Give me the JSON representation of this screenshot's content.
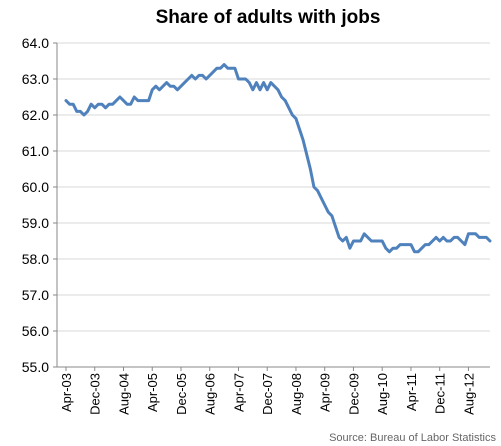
{
  "chart_data": {
    "type": "line",
    "title": "Share of adults with jobs",
    "source": "Source: Bureau of Labor Statistics",
    "ylim": [
      55.0,
      64.0
    ],
    "yticks": [
      "55.0",
      "56.0",
      "57.0",
      "58.0",
      "59.0",
      "60.0",
      "61.0",
      "62.0",
      "63.0",
      "64.0"
    ],
    "xticks": [
      "Apr-03",
      "Dec-03",
      "Aug-04",
      "Apr-05",
      "Dec-05",
      "Aug-06",
      "Apr-07",
      "Dec-07",
      "Aug-08",
      "Apr-09",
      "Dec-09",
      "Aug-10",
      "Apr-11",
      "Dec-11",
      "Aug-12"
    ],
    "grid": true,
    "legend": "none",
    "line_color": "#4F81BD",
    "series": [
      {
        "values": [
          62.4,
          62.3,
          62.3,
          62.1,
          62.1,
          62.0,
          62.1,
          62.3,
          62.2,
          62.3,
          62.3,
          62.2,
          62.3,
          62.3,
          62.4,
          62.5,
          62.4,
          62.3,
          62.3,
          62.5,
          62.4,
          62.4,
          62.4,
          62.4,
          62.7,
          62.8,
          62.7,
          62.8,
          62.9,
          62.8,
          62.8,
          62.7,
          62.8,
          62.9,
          63.0,
          63.1,
          63.0,
          63.1,
          63.1,
          63.0,
          63.1,
          63.2,
          63.3,
          63.3,
          63.4,
          63.3,
          63.3,
          63.3,
          63.0,
          63.0,
          63.0,
          62.9,
          62.7,
          62.9,
          62.7,
          62.9,
          62.7,
          62.9,
          62.8,
          62.7,
          62.5,
          62.4,
          62.2,
          62.0,
          61.9,
          61.6,
          61.3,
          60.9,
          60.5,
          60.0,
          59.9,
          59.7,
          59.5,
          59.3,
          59.2,
          58.9,
          58.6,
          58.5,
          58.6,
          58.3,
          58.5,
          58.5,
          58.5,
          58.7,
          58.6,
          58.5,
          58.5,
          58.5,
          58.5,
          58.3,
          58.2,
          58.3,
          58.3,
          58.4,
          58.4,
          58.4,
          58.4,
          58.2,
          58.2,
          58.3,
          58.4,
          58.4,
          58.5,
          58.6,
          58.5,
          58.6,
          58.5,
          58.5,
          58.6,
          58.6,
          58.5,
          58.4,
          58.7,
          58.7,
          58.7,
          58.6,
          58.6,
          58.6,
          58.5
        ]
      }
    ]
  }
}
